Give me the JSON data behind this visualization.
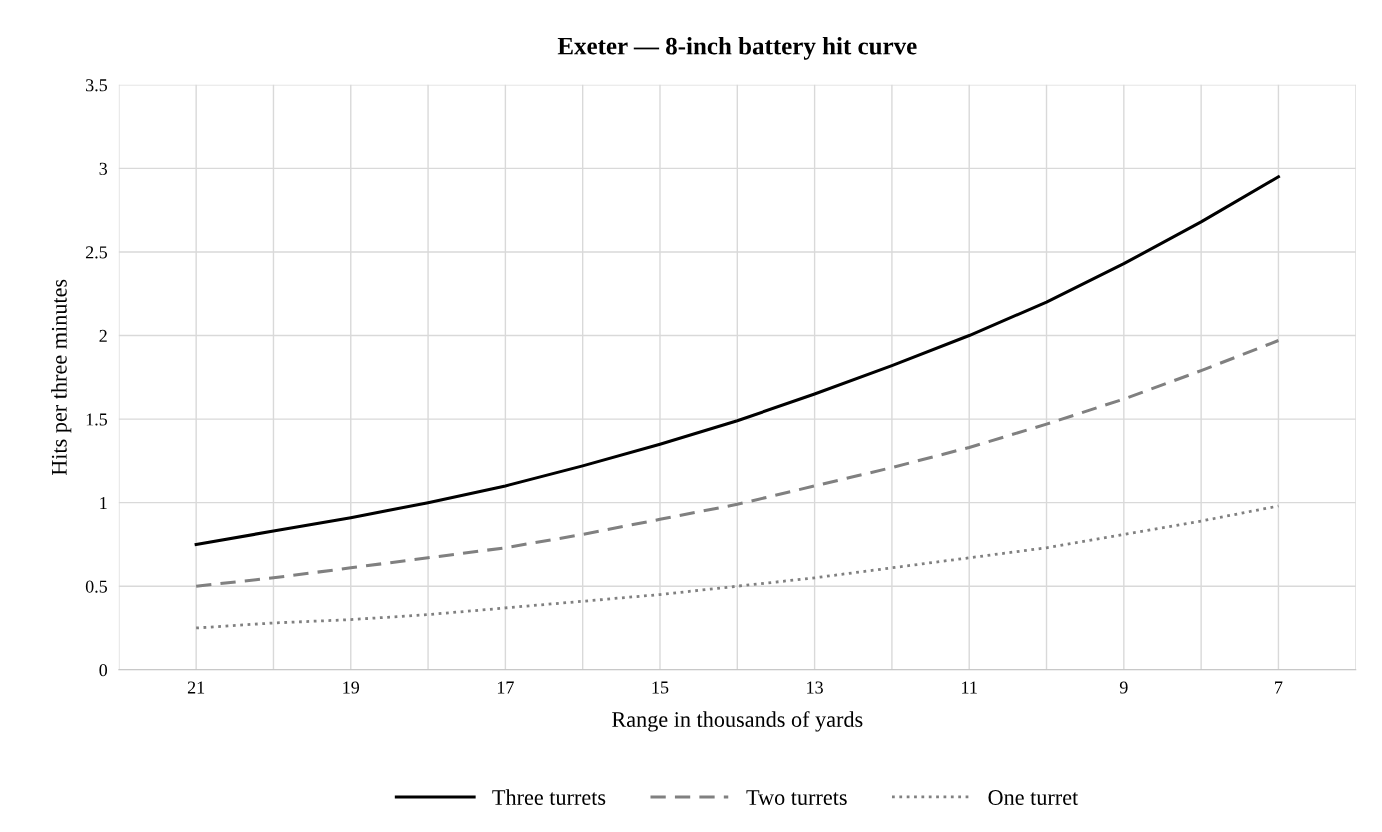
{
  "chart_data": {
    "type": "line",
    "title": "Exeter — 8-inch battery hit curve",
    "xlabel": "Range in thousands of yards",
    "ylabel": "Hits per three minutes",
    "x": [
      21,
      20,
      19,
      18,
      17,
      16,
      15,
      14,
      13,
      12,
      11,
      10,
      9,
      8,
      7
    ],
    "series": [
      {
        "name": "Three turrets",
        "color": "#000000",
        "line_style": "solid",
        "values": [
          0.75,
          0.83,
          0.91,
          1.0,
          1.1,
          1.22,
          1.35,
          1.49,
          1.65,
          1.82,
          2.0,
          2.2,
          2.43,
          2.68,
          2.95
        ]
      },
      {
        "name": "Two turrets",
        "color": "#808080",
        "line_style": "dashed",
        "values": [
          0.5,
          0.55,
          0.61,
          0.67,
          0.73,
          0.81,
          0.9,
          0.99,
          1.1,
          1.21,
          1.33,
          1.47,
          1.62,
          1.79,
          1.97
        ]
      },
      {
        "name": "One turret",
        "color": "#808080",
        "line_style": "dotted",
        "values": [
          0.25,
          0.28,
          0.3,
          0.33,
          0.37,
          0.41,
          0.45,
          0.5,
          0.55,
          0.61,
          0.67,
          0.73,
          0.81,
          0.89,
          0.98
        ]
      }
    ],
    "xlim": [
      22,
      6
    ],
    "xticks": [
      {
        "value": 22,
        "label": null
      },
      21,
      {
        "value": 20,
        "label": null
      },
      19,
      {
        "value": 18,
        "label": null
      },
      17,
      {
        "value": 16,
        "label": null
      },
      15,
      {
        "value": 14,
        "label": null
      },
      13,
      {
        "value": 12,
        "label": null
      },
      11,
      {
        "value": 10,
        "label": null
      },
      9,
      {
        "value": 8,
        "label": null
      },
      7,
      {
        "value": 6,
        "label": null
      }
    ],
    "ylim": [
      0,
      3.5
    ],
    "yticks": [
      0,
      0.5,
      1,
      1.5,
      2,
      2.5,
      3,
      3.5
    ],
    "grid": true,
    "legend": "bottom",
    "marker": "none"
  }
}
